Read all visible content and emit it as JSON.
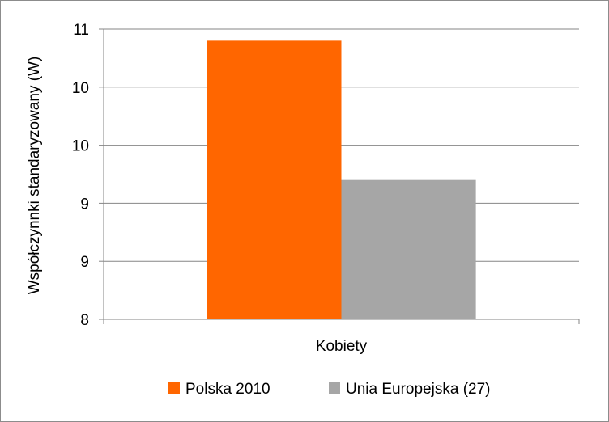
{
  "chart_data": {
    "type": "bar",
    "categories": [
      "Kobiety"
    ],
    "series": [
      {
        "name": "Polska 2010",
        "values": [
          10.4
        ],
        "color": "#ff6600"
      },
      {
        "name": "Unia Europejska (27)",
        "values": [
          9.2
        ],
        "color": "#a6a6a6"
      }
    ],
    "ylabel": "Współczynnki standaryzowany (W)",
    "xlabel": "",
    "ylim": [
      8,
      10.5
    ],
    "yticks": [
      8,
      8.5,
      9,
      9.5,
      10,
      10.5
    ],
    "ytick_labels": [
      "8",
      "9",
      "9",
      "10",
      "10",
      "11"
    ],
    "grid": true,
    "legend_position": "bottom"
  }
}
